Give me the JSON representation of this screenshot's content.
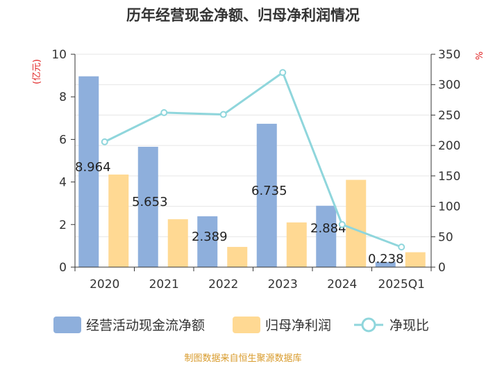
{
  "chart_data": {
    "type": "bar+line",
    "title": "历年经营现金净额、归母净利润情况",
    "left_axis_label": "(亿元)",
    "right_axis_label": "%",
    "categories": [
      "2020",
      "2021",
      "2022",
      "2023",
      "2024",
      "2025Q1"
    ],
    "left_ylim": [
      0,
      10
    ],
    "left_ticks": [
      "0",
      "2",
      "4",
      "6",
      "8",
      "10"
    ],
    "right_ylim": [
      0,
      350
    ],
    "right_ticks": [
      "0",
      "50",
      "100",
      "150",
      "200",
      "250",
      "300",
      "350"
    ],
    "grid": true,
    "legend_position": "bottom",
    "series": [
      {
        "name": "经营活动现金流净额",
        "type": "bar",
        "axis": "left",
        "color": "#8eafdc",
        "values": [
          8.964,
          5.653,
          2.389,
          6.735,
          2.884,
          0.238
        ],
        "labels": [
          "8.964",
          "5.653",
          "2.389",
          "6.735",
          "2.884",
          "0.238"
        ]
      },
      {
        "name": "归母净利润",
        "type": "bar",
        "axis": "left",
        "color": "#ffd993",
        "values": [
          4.35,
          2.25,
          0.95,
          2.1,
          4.1,
          0.7
        ]
      },
      {
        "name": "净现比",
        "type": "line",
        "axis": "right",
        "color": "#8fd6dc",
        "values": [
          206,
          254,
          251,
          320,
          70,
          33
        ]
      }
    ],
    "source": "制图数据来自恒生聚源数据库"
  }
}
